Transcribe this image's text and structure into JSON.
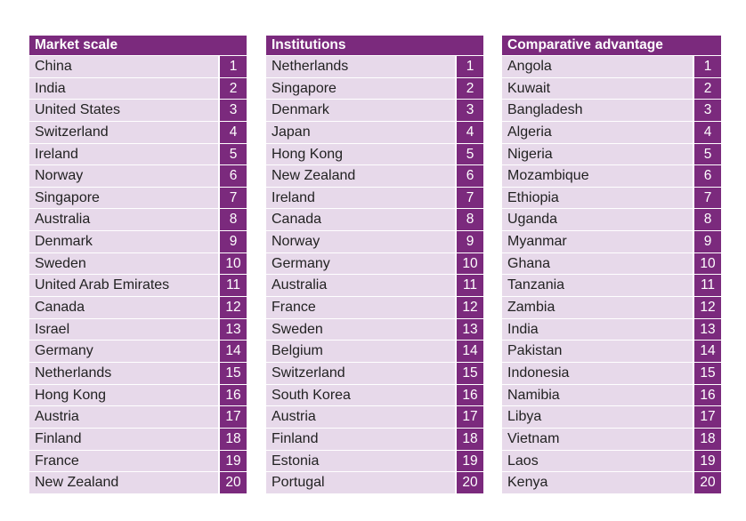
{
  "tables": [
    {
      "title": "Market scale",
      "rows": [
        {
          "name": "China",
          "rank": "1"
        },
        {
          "name": "India",
          "rank": "2"
        },
        {
          "name": "United States",
          "rank": "3"
        },
        {
          "name": "Switzerland",
          "rank": "4"
        },
        {
          "name": "Ireland",
          "rank": "5"
        },
        {
          "name": "Norway",
          "rank": "6"
        },
        {
          "name": "Singapore",
          "rank": "7"
        },
        {
          "name": "Australia",
          "rank": "8"
        },
        {
          "name": "Denmark",
          "rank": "9"
        },
        {
          "name": "Sweden",
          "rank": "10"
        },
        {
          "name": "United Arab Emirates",
          "rank": "11"
        },
        {
          "name": "Canada",
          "rank": "12"
        },
        {
          "name": "Israel",
          "rank": "13"
        },
        {
          "name": "Germany",
          "rank": "14"
        },
        {
          "name": "Netherlands",
          "rank": "15"
        },
        {
          "name": "Hong Kong",
          "rank": "16"
        },
        {
          "name": "Austria",
          "rank": "17"
        },
        {
          "name": "Finland",
          "rank": "18"
        },
        {
          "name": "France",
          "rank": "19"
        },
        {
          "name": "New Zealand",
          "rank": "20"
        }
      ]
    },
    {
      "title": "Institutions",
      "rows": [
        {
          "name": "Netherlands",
          "rank": "1"
        },
        {
          "name": "Singapore",
          "rank": "2"
        },
        {
          "name": "Denmark",
          "rank": "3"
        },
        {
          "name": "Japan",
          "rank": "4"
        },
        {
          "name": "Hong Kong",
          "rank": "5"
        },
        {
          "name": "New Zealand",
          "rank": "6"
        },
        {
          "name": "Ireland",
          "rank": "7"
        },
        {
          "name": "Canada",
          "rank": "8"
        },
        {
          "name": "Norway",
          "rank": "9"
        },
        {
          "name": "Germany",
          "rank": "10"
        },
        {
          "name": "Australia",
          "rank": "11"
        },
        {
          "name": "France",
          "rank": "12"
        },
        {
          "name": "Sweden",
          "rank": "13"
        },
        {
          "name": "Belgium",
          "rank": "14"
        },
        {
          "name": "Switzerland",
          "rank": "15"
        },
        {
          "name": "South Korea",
          "rank": "16"
        },
        {
          "name": "Austria",
          "rank": "17"
        },
        {
          "name": "Finland",
          "rank": "18"
        },
        {
          "name": "Estonia",
          "rank": "19"
        },
        {
          "name": "Portugal",
          "rank": "20"
        }
      ]
    },
    {
      "title": "Comparative advantage",
      "rows": [
        {
          "name": "Angola",
          "rank": "1"
        },
        {
          "name": "Kuwait",
          "rank": "2"
        },
        {
          "name": "Bangladesh",
          "rank": "3"
        },
        {
          "name": "Algeria",
          "rank": "4"
        },
        {
          "name": "Nigeria",
          "rank": "5"
        },
        {
          "name": "Mozambique",
          "rank": "6"
        },
        {
          "name": "Ethiopia",
          "rank": "7"
        },
        {
          "name": "Uganda",
          "rank": "8"
        },
        {
          "name": "Myanmar",
          "rank": "9"
        },
        {
          "name": "Ghana",
          "rank": "10"
        },
        {
          "name": "Tanzania",
          "rank": "11"
        },
        {
          "name": "Zambia",
          "rank": "12"
        },
        {
          "name": "India",
          "rank": "13"
        },
        {
          "name": "Pakistan",
          "rank": "14"
        },
        {
          "name": "Indonesia",
          "rank": "15"
        },
        {
          "name": "Namibia",
          "rank": "16"
        },
        {
          "name": "Libya",
          "rank": "17"
        },
        {
          "name": "Vietnam",
          "rank": "18"
        },
        {
          "name": "Laos",
          "rank": "19"
        },
        {
          "name": "Kenya",
          "rank": "20"
        }
      ]
    }
  ],
  "colors": {
    "header_bg": "#7b2a7d",
    "row_bg": "#e7d9ea",
    "rank_bg": "#7b2a7d"
  }
}
